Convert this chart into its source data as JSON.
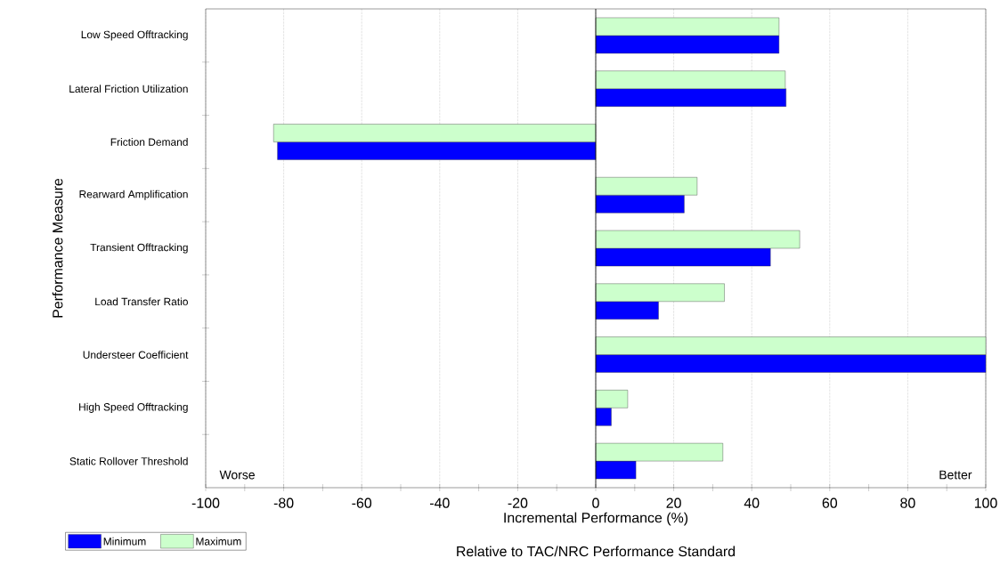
{
  "chart_data": {
    "type": "bar",
    "orientation": "horizontal",
    "categories": [
      "Low Speed Offtracking",
      "Lateral Friction Utilization",
      "Friction Demand",
      "Rearward Amplification",
      "Transient Offtracking",
      "Load Transfer Ratio",
      "Understeer Coefficient",
      "High Speed Offtracking",
      "Static Rollover Threshold"
    ],
    "series": [
      {
        "name": "Minimum",
        "color": "#0000ff",
        "values": [
          47,
          48.8,
          -81.6,
          22.7,
          44.8,
          16.1,
          100,
          4,
          10.3
        ]
      },
      {
        "name": "Maximum",
        "color": "#ccffcc",
        "values": [
          47,
          48.6,
          -82.6,
          26,
          52.3,
          33,
          100,
          8.2,
          32.6
        ]
      }
    ],
    "xlabel": "Incremental Performance (%)",
    "ylabel": "Performance Measure",
    "xlim": [
      -100,
      100
    ],
    "xticks": [
      -100,
      -80,
      -60,
      -40,
      -20,
      0,
      20,
      40,
      60,
      80,
      100
    ],
    "grid": "x",
    "legend": "bottom left",
    "annotations": [
      "Worse",
      "Better",
      "Relative  to TAC/NRC Performance Standard"
    ]
  }
}
